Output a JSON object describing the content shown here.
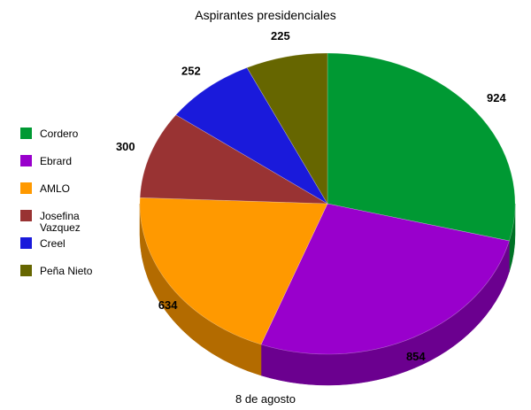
{
  "chart_data": {
    "type": "pie",
    "title": "Aspirantes presidenciales",
    "caption": "8 de agosto",
    "legend_position": "left",
    "slices": [
      {
        "name": "Cordero",
        "value": 924,
        "color": "#009933",
        "side": "#007326"
      },
      {
        "name": "Ebrard",
        "value": 854,
        "color": "#9900cc",
        "side": "#6b008f"
      },
      {
        "name": "AMLO",
        "value": 634,
        "color": "#ff9900",
        "side": "#b36b00"
      },
      {
        "name": "Josefina Vazquez",
        "value": 300,
        "color": "#993333",
        "side": "#6b2424"
      },
      {
        "name": "Creel",
        "value": 252,
        "color": "#1a1adb",
        "side": "#121299"
      },
      {
        "name": "Peña Nieto",
        "value": 225,
        "color": "#666600",
        "side": "#474700"
      }
    ]
  }
}
